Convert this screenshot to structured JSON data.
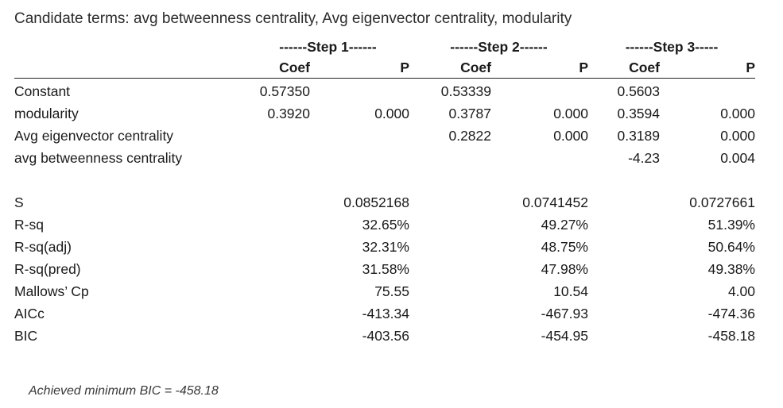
{
  "title": "Candidate terms: avg betweenness centrality, Avg eigenvector centrality, modularity",
  "steps": [
    "------Step 1------",
    "------Step 2------",
    "------Step 3-----"
  ],
  "subheaders": {
    "coef": "Coef",
    "p": "P"
  },
  "coef_rows": [
    {
      "label": "Constant",
      "values": [
        "0.57350",
        "",
        "0.53339",
        "",
        "0.5603",
        ""
      ]
    },
    {
      "label": "modularity",
      "values": [
        "0.3920",
        "0.000",
        "0.3787",
        "0.000",
        "0.3594",
        "0.000"
      ]
    },
    {
      "label": "Avg eigenvector centrality",
      "values": [
        "",
        "",
        "0.2822",
        "0.000",
        "0.3189",
        "0.000"
      ]
    },
    {
      "label": "avg betweenness centrality",
      "values": [
        "",
        "",
        "",
        "",
        "-4.23",
        "0.004"
      ]
    }
  ],
  "summary_rows": [
    {
      "label": "S",
      "values": [
        "0.0852168",
        "0.0741452",
        "0.0727661"
      ]
    },
    {
      "label": "R-sq",
      "values": [
        "32.65%",
        "49.27%",
        "51.39%"
      ]
    },
    {
      "label": "R-sq(adj)",
      "values": [
        "32.31%",
        "48.75%",
        "50.64%"
      ]
    },
    {
      "label": "R-sq(pred)",
      "values": [
        "31.58%",
        "47.98%",
        "49.38%"
      ]
    },
    {
      "label": "Mallows’ Cp",
      "values": [
        "75.55",
        "10.54",
        "4.00"
      ]
    },
    {
      "label": "AICc",
      "values": [
        "-413.34",
        "-467.93",
        "-474.36"
      ]
    },
    {
      "label": "BIC",
      "values": [
        "-403.56",
        "-454.95",
        "-458.18"
      ]
    }
  ],
  "footer": "Achieved minimum BIC =  -458.18"
}
